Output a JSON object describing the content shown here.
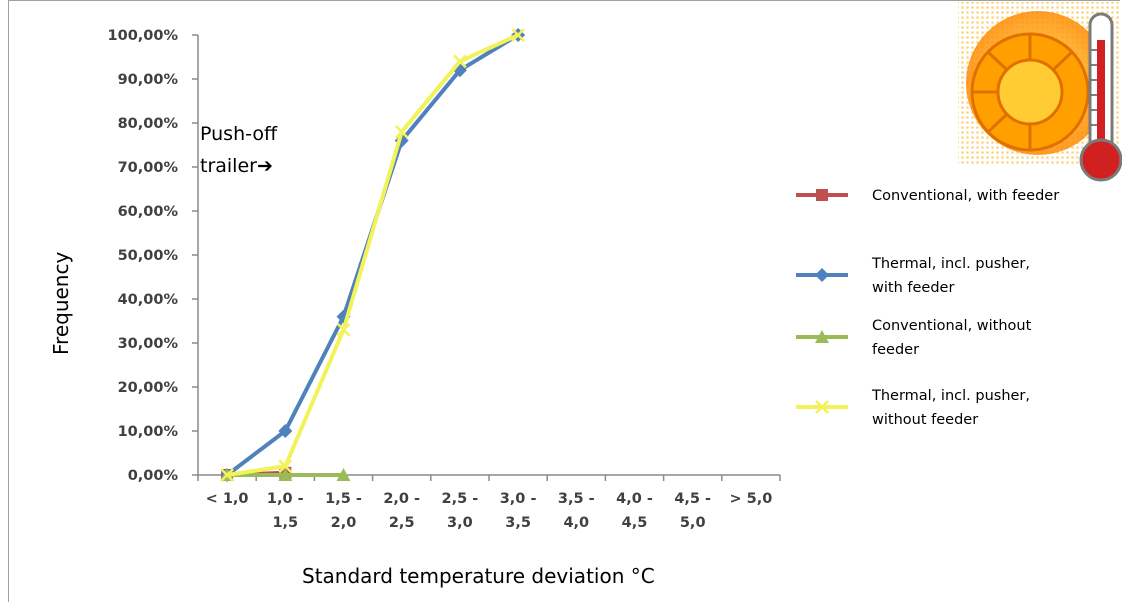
{
  "chart_data": {
    "type": "line",
    "categories": [
      [
        "< 1,0",
        ""
      ],
      [
        "1,0 -",
        "1,5"
      ],
      [
        "1,5 -",
        "2,0"
      ],
      [
        "2,0 -",
        "2,5"
      ],
      [
        "2,5 -",
        "3,0"
      ],
      [
        "3,0 -",
        "3,5"
      ],
      [
        "3,5 -",
        "4,0"
      ],
      [
        "4,0 -",
        "4,5"
      ],
      [
        "4,5 -",
        "5,0"
      ],
      [
        "> 5,0",
        ""
      ]
    ],
    "y_ticks": [
      "0,00%",
      "10,00%",
      "20,00%",
      "30,00%",
      "40,00%",
      "50,00%",
      "60,00%",
      "70,00%",
      "80,00%",
      "90,00%",
      "100,00%"
    ],
    "ylim": [
      0,
      100
    ],
    "xlabel": "Standard temperature deviation °C",
    "ylabel": "Frequency",
    "annotation": [
      "Push-off",
      "trailer➔"
    ],
    "legend_position": "right",
    "grid": false,
    "series": [
      {
        "name": "Conventional, with feeder",
        "lines": [
          "Conventional, with feeder"
        ],
        "color": "#c0504d",
        "marker": "square",
        "values": [
          0,
          0.5,
          null,
          null,
          null,
          null,
          null,
          null,
          null,
          null
        ]
      },
      {
        "name": "Thermal, incl. pusher, with feeder",
        "lines": [
          "Thermal, incl. pusher,",
          "with feeder"
        ],
        "color": "#4f81bd",
        "marker": "diamond",
        "values": [
          0,
          10,
          36,
          76,
          92,
          100,
          null,
          null,
          null,
          null
        ]
      },
      {
        "name": "Conventional, without feeder",
        "lines": [
          "Conventional, without",
          "feeder"
        ],
        "color": "#9bbb59",
        "marker": "triangle",
        "values": [
          0,
          0,
          0,
          null,
          null,
          null,
          null,
          null,
          null,
          null
        ]
      },
      {
        "name": "Thermal, incl. pusher, without feeder",
        "lines": [
          "Thermal, incl. pusher,",
          "without feeder"
        ],
        "color": "#f2f25a",
        "marker": "x",
        "values": [
          0,
          2,
          33,
          78,
          94,
          100,
          null,
          null,
          null,
          null
        ]
      }
    ]
  },
  "decoration": {
    "icon": "sun-thermometer-icon"
  }
}
